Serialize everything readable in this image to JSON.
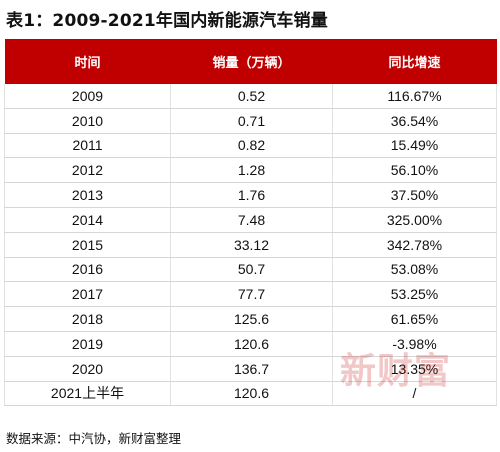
{
  "title": "表1：2009-2021年国内新能源汽车销量",
  "table": {
    "headers": [
      "时间",
      "销量（万辆）",
      "同比增速"
    ],
    "rows": [
      [
        "2009",
        "0.52",
        "116.67%"
      ],
      [
        "2010",
        "0.71",
        "36.54%"
      ],
      [
        "2011",
        "0.82",
        "15.49%"
      ],
      [
        "2012",
        "1.28",
        "56.10%"
      ],
      [
        "2013",
        "1.76",
        "37.50%"
      ],
      [
        "2014",
        "7.48",
        "325.00%"
      ],
      [
        "2015",
        "33.12",
        "342.78%"
      ],
      [
        "2016",
        "50.7",
        "53.08%"
      ],
      [
        "2017",
        "77.7",
        "53.25%"
      ],
      [
        "2018",
        "125.6",
        "61.65%"
      ],
      [
        "2019",
        "120.6",
        "-3.98%"
      ],
      [
        "2020",
        "136.7",
        "13.35%"
      ],
      [
        "2021上半年",
        "120.6",
        "/"
      ]
    ]
  },
  "source": "数据来源：中汽协，新财富整理",
  "watermark": "新财富",
  "colors": {
    "header_bg": "#c00000",
    "header_text": "#ffffff",
    "watermark": "#c00000"
  }
}
